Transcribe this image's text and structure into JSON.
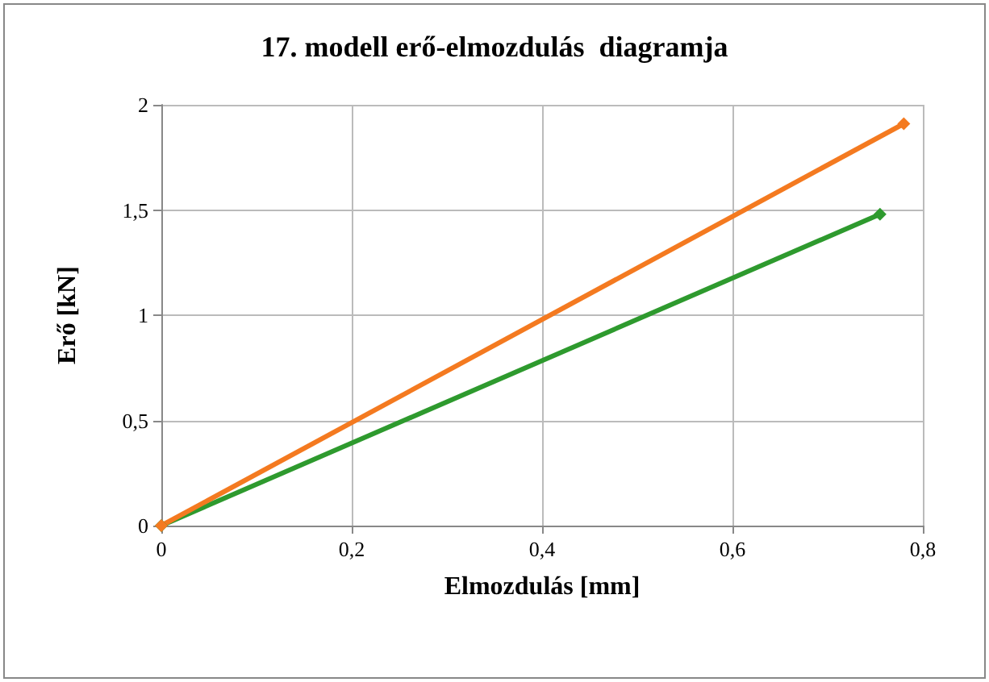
{
  "chart_data": {
    "type": "line",
    "title": "17. modell erő-elmozdulás  diagramja",
    "xlabel": "Elmozdulás [mm]",
    "ylabel": "Erő [kN]",
    "series": [
      {
        "color": "#2e9a2e",
        "x": [
          0,
          0.755
        ],
        "values": [
          0,
          1.48
        ]
      },
      {
        "color": "#f47a20",
        "x": [
          0,
          0.78
        ],
        "values": [
          0,
          1.91
        ]
      }
    ],
    "xlim": [
      0,
      0.8
    ],
    "xticks": [
      0,
      {
        "value": 0.2,
        "label": "0,2"
      },
      {
        "value": 0.4,
        "label": "0,4"
      },
      {
        "value": 0.6,
        "label": "0,6"
      },
      {
        "value": 0.8,
        "label": "0,8"
      }
    ],
    "ylim": [
      0,
      2
    ],
    "yticks": [
      0,
      {
        "value": 0.5,
        "label": "0,5"
      },
      1,
      {
        "value": 1.5,
        "label": "1,5"
      },
      2
    ],
    "grid": true,
    "marker": "diamond",
    "line_style": "solid"
  }
}
